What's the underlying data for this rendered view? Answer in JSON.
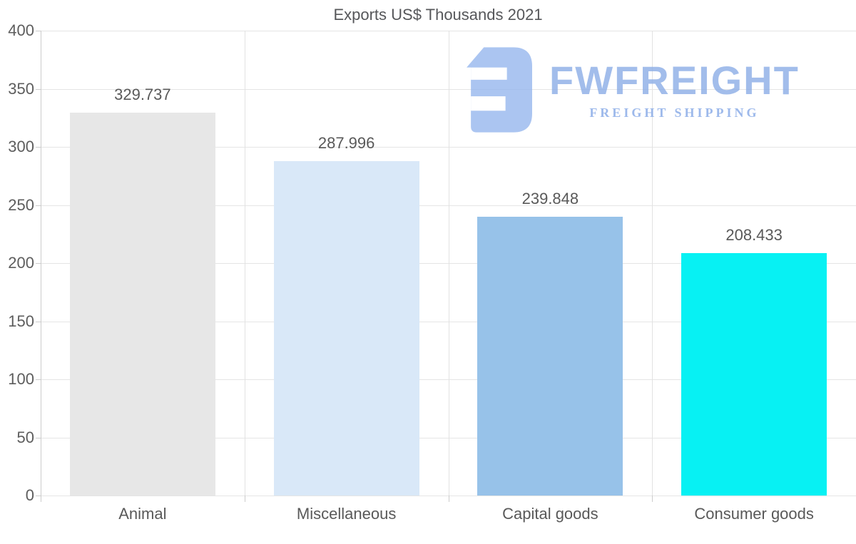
{
  "chart_data": {
    "type": "bar",
    "title": "Exports US$ Thousands 2021",
    "categories": [
      "Animal",
      "Miscellaneous",
      "Capital goods",
      "Consumer goods"
    ],
    "values": [
      329.737,
      287.996,
      239.848,
      208.433
    ],
    "value_labels": [
      "329.737",
      "287.996",
      "239.848",
      "208.433"
    ],
    "bar_colors": [
      "#e7e7e7",
      "#d9e8f8",
      "#97c2e9",
      "#07f1f3"
    ],
    "ylim": [
      0,
      400
    ],
    "yticks": [
      0,
      50,
      100,
      150,
      200,
      250,
      300,
      350,
      400
    ],
    "xlabel": "",
    "ylabel": "",
    "grid": "horizontal gridlines every 50 plus vertical category-boundary gridlines",
    "legend": "none"
  },
  "watermark": {
    "brand": "FWFREIGHT",
    "tagline": "FREIGHT SHIPPING",
    "color": "#a9c5f0"
  },
  "style_colors": {
    "grid": "#e5e5e5",
    "axis": "#cccccc",
    "label_text": "#5d5d5d",
    "title_text": "#56575a"
  }
}
